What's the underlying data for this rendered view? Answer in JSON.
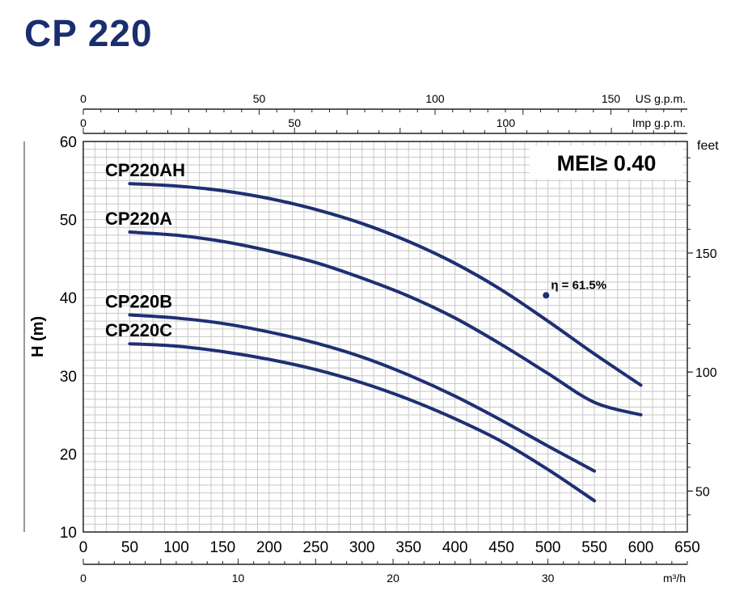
{
  "title": "CP 220",
  "chart_data": {
    "type": "line",
    "xlabel": "",
    "x_unit_bottom": "",
    "ylabel": "H (m)",
    "y2label": "feet",
    "xlim": [
      0,
      650
    ],
    "ylim": [
      10,
      60
    ],
    "x_ticks": [
      0,
      50,
      100,
      150,
      200,
      250,
      300,
      350,
      400,
      450,
      500,
      550,
      600,
      650
    ],
    "y_ticks": [
      10,
      20,
      30,
      40,
      50,
      60
    ],
    "feet_ticks": [
      50,
      100,
      150
    ],
    "feet_label": "feet",
    "m3h_ticks": [
      0,
      10,
      20,
      30
    ],
    "m3h_label": "m³/h",
    "usgpm_ticks": [
      0,
      50,
      100,
      150
    ],
    "usgpm_label": "US g.p.m.",
    "impgpm_ticks": [
      0,
      50,
      100
    ],
    "impgpm_label": "Imp g.p.m.",
    "mei_text": "MEI≥ 0.40",
    "efficiency_annotation": {
      "text": "η = 61.5%",
      "x": 498,
      "y": 40.3
    },
    "grid": true,
    "series": [
      {
        "name": "CP220AH",
        "x": [
          50,
          100,
          150,
          200,
          250,
          300,
          350,
          400,
          450,
          500,
          550,
          600
        ],
        "y": [
          54.6,
          54.3,
          53.7,
          52.7,
          51.3,
          49.5,
          47.2,
          44.4,
          41.0,
          37.0,
          32.8,
          28.8
        ]
      },
      {
        "name": "CP220A",
        "x": [
          50,
          100,
          150,
          200,
          250,
          300,
          350,
          400,
          450,
          500,
          550,
          600
        ],
        "y": [
          48.4,
          48.0,
          47.2,
          46.0,
          44.5,
          42.5,
          40.2,
          37.4,
          34.0,
          30.3,
          26.6,
          25.0
        ]
      },
      {
        "name": "CP220B",
        "x": [
          50,
          100,
          150,
          200,
          250,
          300,
          350,
          400,
          450,
          500,
          550
        ],
        "y": [
          37.8,
          37.4,
          36.7,
          35.6,
          34.2,
          32.4,
          30.1,
          27.4,
          24.3,
          21.0,
          17.8
        ]
      },
      {
        "name": "CP220C",
        "x": [
          50,
          100,
          150,
          200,
          250,
          300,
          350,
          400,
          450,
          500,
          550
        ],
        "y": [
          34.1,
          33.8,
          33.1,
          32.1,
          30.8,
          29.1,
          27.0,
          24.5,
          21.6,
          18.0,
          14.0
        ]
      }
    ]
  }
}
